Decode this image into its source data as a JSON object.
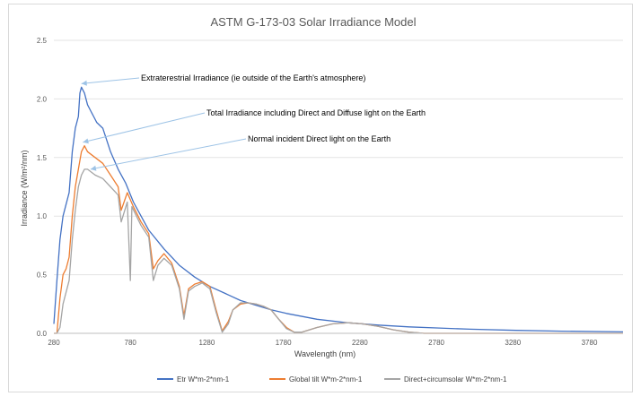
{
  "chart_data": {
    "type": "line",
    "title": "ASTM G-173-03 Solar Irradiance Model",
    "xlabel": "Wavelength (nm)",
    "ylabel": "Irradiance (W/m²/nm)",
    "xlim": [
      280,
      4000
    ],
    "ylim": [
      0,
      2.5
    ],
    "xticks": [
      280,
      780,
      1280,
      1780,
      2280,
      2780,
      3280,
      3780
    ],
    "yticks": [
      "0.0",
      "0.5",
      "1.0",
      "1.5",
      "2.0",
      "2.5"
    ],
    "grid": "horizontal",
    "legend_position": "bottom",
    "series": [
      {
        "name": "Etr W*m-2*nm-1",
        "color": "#4472c4",
        "points": [
          [
            280,
            0.08
          ],
          [
            300,
            0.45
          ],
          [
            320,
            0.8
          ],
          [
            340,
            1.0
          ],
          [
            360,
            1.1
          ],
          [
            380,
            1.2
          ],
          [
            400,
            1.55
          ],
          [
            420,
            1.75
          ],
          [
            440,
            1.85
          ],
          [
            450,
            2.05
          ],
          [
            460,
            2.1
          ],
          [
            480,
            2.05
          ],
          [
            500,
            1.95
          ],
          [
            520,
            1.9
          ],
          [
            540,
            1.85
          ],
          [
            560,
            1.8
          ],
          [
            600,
            1.75
          ],
          [
            650,
            1.55
          ],
          [
            700,
            1.4
          ],
          [
            750,
            1.28
          ],
          [
            800,
            1.12
          ],
          [
            900,
            0.88
          ],
          [
            1000,
            0.72
          ],
          [
            1100,
            0.58
          ],
          [
            1200,
            0.48
          ],
          [
            1300,
            0.4
          ],
          [
            1400,
            0.34
          ],
          [
            1500,
            0.28
          ],
          [
            1600,
            0.24
          ],
          [
            1700,
            0.2
          ],
          [
            1800,
            0.17
          ],
          [
            2000,
            0.12
          ],
          [
            2200,
            0.09
          ],
          [
            2400,
            0.07
          ],
          [
            2600,
            0.055
          ],
          [
            2800,
            0.045
          ],
          [
            3000,
            0.035
          ],
          [
            3300,
            0.025
          ],
          [
            3600,
            0.018
          ],
          [
            4000,
            0.012
          ]
        ]
      },
      {
        "name": "Global tilt  W*m-2*nm-1",
        "color": "#ed7d31",
        "points": [
          [
            280,
            0.0
          ],
          [
            300,
            0.0
          ],
          [
            320,
            0.3
          ],
          [
            340,
            0.5
          ],
          [
            360,
            0.55
          ],
          [
            380,
            0.65
          ],
          [
            400,
            1.0
          ],
          [
            420,
            1.25
          ],
          [
            440,
            1.4
          ],
          [
            460,
            1.55
          ],
          [
            480,
            1.6
          ],
          [
            500,
            1.55
          ],
          [
            550,
            1.5
          ],
          [
            600,
            1.45
          ],
          [
            650,
            1.35
          ],
          [
            700,
            1.25
          ],
          [
            720,
            1.05
          ],
          [
            760,
            1.2
          ],
          [
            800,
            1.08
          ],
          [
            850,
            0.95
          ],
          [
            900,
            0.85
          ],
          [
            930,
            0.55
          ],
          [
            960,
            0.62
          ],
          [
            1000,
            0.68
          ],
          [
            1050,
            0.6
          ],
          [
            1100,
            0.4
          ],
          [
            1130,
            0.15
          ],
          [
            1160,
            0.38
          ],
          [
            1200,
            0.42
          ],
          [
            1250,
            0.44
          ],
          [
            1300,
            0.4
          ],
          [
            1340,
            0.2
          ],
          [
            1380,
            0.02
          ],
          [
            1420,
            0.1
          ],
          [
            1450,
            0.2
          ],
          [
            1500,
            0.25
          ],
          [
            1550,
            0.26
          ],
          [
            1600,
            0.25
          ],
          [
            1650,
            0.23
          ],
          [
            1700,
            0.2
          ],
          [
            1750,
            0.12
          ],
          [
            1800,
            0.05
          ],
          [
            1850,
            0.01
          ],
          [
            1900,
            0.01
          ],
          [
            1950,
            0.03
          ],
          [
            2000,
            0.05
          ],
          [
            2100,
            0.08
          ],
          [
            2200,
            0.09
          ],
          [
            2300,
            0.08
          ],
          [
            2400,
            0.06
          ],
          [
            2500,
            0.03
          ],
          [
            2600,
            0.01
          ],
          [
            2700,
            0.0
          ],
          [
            3000,
            0.0
          ],
          [
            4000,
            0.0
          ]
        ]
      },
      {
        "name": "Direct+circumsolar W*m-2*nm-1",
        "color": "#a5a5a5",
        "points": [
          [
            280,
            0.0
          ],
          [
            300,
            0.0
          ],
          [
            320,
            0.05
          ],
          [
            340,
            0.25
          ],
          [
            360,
            0.35
          ],
          [
            380,
            0.45
          ],
          [
            400,
            0.8
          ],
          [
            420,
            1.05
          ],
          [
            440,
            1.25
          ],
          [
            460,
            1.35
          ],
          [
            480,
            1.4
          ],
          [
            500,
            1.4
          ],
          [
            550,
            1.35
          ],
          [
            600,
            1.32
          ],
          [
            650,
            1.25
          ],
          [
            700,
            1.18
          ],
          [
            720,
            0.95
          ],
          [
            760,
            1.12
          ],
          [
            780,
            0.45
          ],
          [
            790,
            1.08
          ],
          [
            850,
            0.92
          ],
          [
            900,
            0.82
          ],
          [
            930,
            0.45
          ],
          [
            960,
            0.58
          ],
          [
            1000,
            0.64
          ],
          [
            1050,
            0.58
          ],
          [
            1100,
            0.38
          ],
          [
            1130,
            0.12
          ],
          [
            1160,
            0.36
          ],
          [
            1200,
            0.4
          ],
          [
            1250,
            0.43
          ],
          [
            1300,
            0.38
          ],
          [
            1340,
            0.18
          ],
          [
            1380,
            0.01
          ],
          [
            1420,
            0.08
          ],
          [
            1450,
            0.2
          ],
          [
            1500,
            0.26
          ],
          [
            1550,
            0.26
          ],
          [
            1600,
            0.25
          ],
          [
            1650,
            0.23
          ],
          [
            1700,
            0.2
          ],
          [
            1750,
            0.12
          ],
          [
            1800,
            0.04
          ],
          [
            1850,
            0.01
          ],
          [
            1900,
            0.01
          ],
          [
            1950,
            0.03
          ],
          [
            2000,
            0.05
          ],
          [
            2100,
            0.08
          ],
          [
            2200,
            0.09
          ],
          [
            2300,
            0.08
          ],
          [
            2400,
            0.06
          ],
          [
            2500,
            0.03
          ],
          [
            2600,
            0.01
          ],
          [
            2700,
            0.0
          ],
          [
            3000,
            0.0
          ],
          [
            4000,
            0.0
          ]
        ]
      }
    ],
    "annotations": [
      {
        "text": "Extraterestrial Irradiance (ie outside of the Earth's atmosphere)",
        "target": [
          460,
          2.13
        ]
      },
      {
        "text": "Total Irradiance including Direct and Diffuse light on the Earth",
        "target": [
          470,
          1.63
        ]
      },
      {
        "text": "Normal incident Direct light on the Earth",
        "target": [
          520,
          1.4
        ]
      }
    ]
  }
}
